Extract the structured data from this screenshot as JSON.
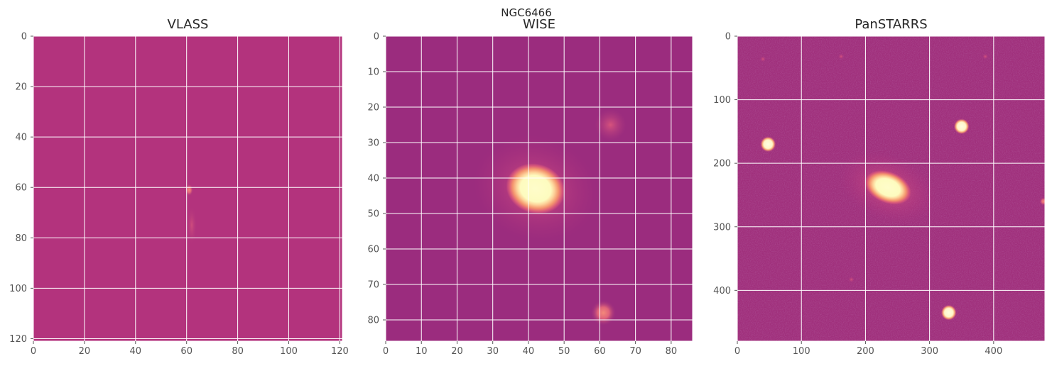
{
  "figure": {
    "suptitle": "NGC6466"
  },
  "colors": {
    "background": "#ffffff",
    "grid": "#ffffff",
    "tick_text": "#555555",
    "title_text": "#262626",
    "colormap": "magma-like (purple-magenta to pale yellow)"
  },
  "chart_data": [
    {
      "type": "heatmap",
      "title": "VLASS",
      "colormap": "magma-like",
      "grid": true,
      "xlim": [
        0,
        121
      ],
      "ylim": [
        121,
        0
      ],
      "xticks": [
        "0",
        "20",
        "40",
        "60",
        "80",
        "100",
        "120"
      ],
      "yticks": [
        "0",
        "20",
        "40",
        "60",
        "80",
        "100",
        "120"
      ],
      "features": [
        {
          "kind": "compact-source",
          "x": 61,
          "y": 61,
          "brightness": "moderate"
        },
        {
          "kind": "faint-extension",
          "x": 62,
          "y": 75,
          "brightness": "low"
        }
      ]
    },
    {
      "type": "heatmap",
      "title": "WISE",
      "colormap": "magma-like",
      "grid": true,
      "xlim": [
        0,
        86
      ],
      "ylim": [
        86,
        0
      ],
      "xticks": [
        "0",
        "10",
        "20",
        "30",
        "40",
        "50",
        "60",
        "70",
        "80"
      ],
      "yticks": [
        "0",
        "10",
        "20",
        "30",
        "40",
        "50",
        "60",
        "70",
        "80"
      ],
      "features": [
        {
          "kind": "galaxy",
          "x": 42,
          "y": 43,
          "brightness": "saturated"
        },
        {
          "kind": "point-source",
          "x": 63,
          "y": 25,
          "brightness": "low"
        },
        {
          "kind": "point-source",
          "x": 61,
          "y": 78,
          "brightness": "moderate"
        }
      ]
    },
    {
      "type": "heatmap",
      "title": "PanSTARRS",
      "colormap": "magma-like",
      "grid": true,
      "xlim": [
        0,
        480
      ],
      "ylim": [
        480,
        0
      ],
      "xticks": [
        "0",
        "100",
        "200",
        "300",
        "400"
      ],
      "yticks": [
        "0",
        "100",
        "200",
        "300",
        "400"
      ],
      "features": [
        {
          "kind": "galaxy",
          "x": 235,
          "y": 238,
          "brightness": "saturated"
        },
        {
          "kind": "star",
          "x": 48,
          "y": 170,
          "brightness": "high"
        },
        {
          "kind": "star",
          "x": 350,
          "y": 142,
          "brightness": "high"
        },
        {
          "kind": "star",
          "x": 330,
          "y": 435,
          "brightness": "high"
        },
        {
          "kind": "star",
          "x": 478,
          "y": 260,
          "brightness": "moderate"
        },
        {
          "kind": "faint-star",
          "x": 40,
          "y": 36,
          "brightness": "low"
        },
        {
          "kind": "faint-star",
          "x": 162,
          "y": 32,
          "brightness": "low"
        },
        {
          "kind": "faint-star",
          "x": 387,
          "y": 32,
          "brightness": "low"
        },
        {
          "kind": "faint-star",
          "x": 178,
          "y": 383,
          "brightness": "low"
        }
      ]
    }
  ]
}
